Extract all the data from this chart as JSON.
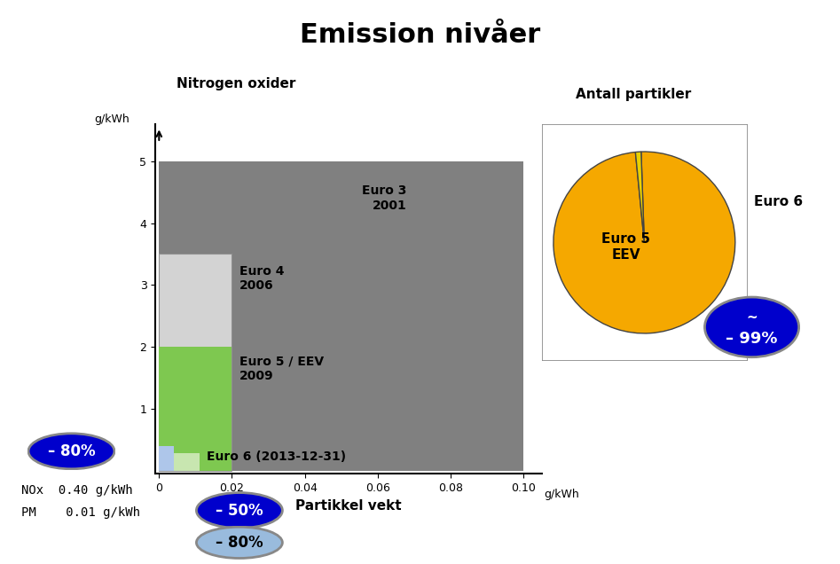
{
  "title": "Emission nivåer",
  "scatter_title": "Nitrogen oxider",
  "scatter_ylabel": "g/kWh",
  "scatter_xlabel": "Partikkel vekt",
  "scatter_xlabel2": "g/kWh",
  "pie_title": "Antall partikler",
  "euro3_nox": 5.0,
  "euro3_pm": 0.1,
  "euro4_nox": 3.5,
  "euro4_pm": 0.02,
  "euro5_nox": 2.0,
  "euro5_pm": 0.02,
  "euro6_nox": 0.4,
  "euro6_pm": 0.01,
  "bar_color_euro3": "#808080",
  "bar_color_euro4": "#d3d3d3",
  "bar_color_euro5": "#7ec850",
  "bar_color_euro6_nox": "#aec6ea",
  "bar_color_euro6_pm": "#c8e6b0",
  "pie_color_euro5": "#f5a800",
  "pie_color_euro6": "#e8d000",
  "blue_dark": "#0000cc",
  "blue_light": "#99bbdd",
  "note_nox": "NOx  0.40 g/kWh",
  "note_pm": "PM    0.01 g/kWh",
  "badge_80_text": "– 80%",
  "badge_50_text": "– 50%",
  "badge_80b_text": "– 80%",
  "badge_99_line1": "~",
  "badge_99_line2": "– 99%",
  "euro3_label": "Euro 3\n2001",
  "euro4_label": "Euro 4\n2006",
  "euro5_label": "Euro 5 / EEV\n2009",
  "euro6_label": "Euro 6 (2013-12-31)",
  "euro6_pie_label": "Euro 6",
  "euro5_pie_label": "Euro 5\nEEV"
}
